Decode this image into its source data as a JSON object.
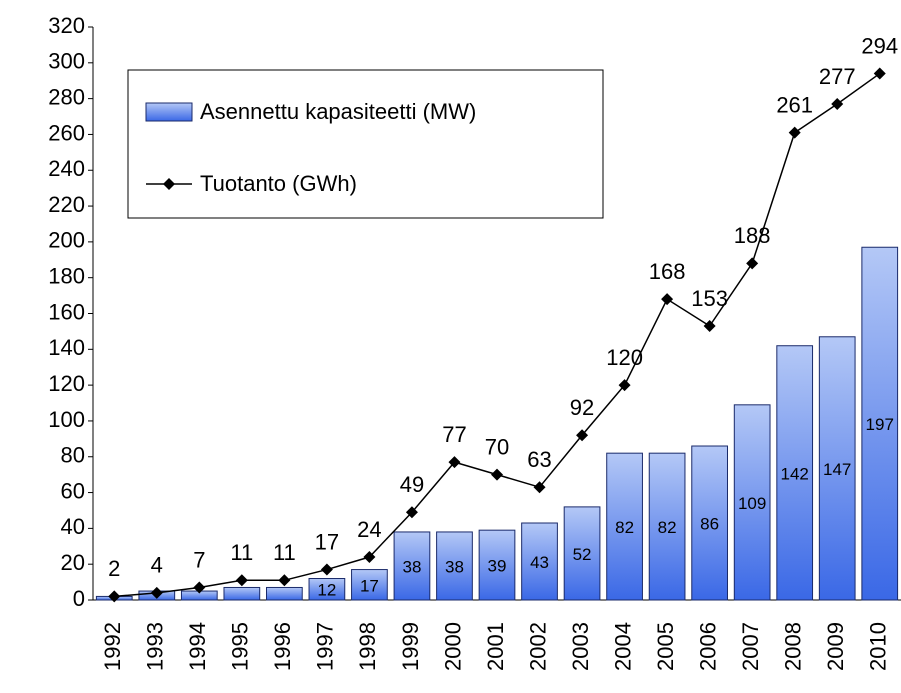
{
  "chart_data": {
    "type": "bar-line",
    "categories": [
      "1992",
      "1993",
      "1994",
      "1995",
      "1996",
      "1997",
      "1998",
      "1999",
      "2000",
      "2001",
      "2002",
      "2003",
      "2004",
      "2005",
      "2006",
      "2007",
      "2008",
      "2009",
      "2010"
    ],
    "series": [
      {
        "name": "Asennettu kapasiteetti (MW)",
        "type": "bar",
        "color": "#4a78ea",
        "values": [
          2,
          5,
          5,
          7,
          7,
          12,
          17,
          38,
          38,
          39,
          43,
          52,
          82,
          82,
          86,
          109,
          142,
          147,
          197
        ],
        "value_labels": [
          null,
          null,
          null,
          null,
          null,
          "12",
          "17",
          "38",
          "38",
          "39",
          "43",
          "52",
          "82",
          "82",
          "86",
          "109",
          "142",
          "147",
          "197"
        ]
      },
      {
        "name": "Tuotanto (GWh)",
        "type": "line",
        "color": "#000000",
        "values": [
          2,
          4,
          7,
          11,
          11,
          17,
          24,
          49,
          77,
          70,
          63,
          92,
          120,
          168,
          153,
          188,
          261,
          277,
          294
        ]
      }
    ],
    "ylim": [
      0,
      320
    ],
    "yticks": [
      0,
      20,
      40,
      60,
      80,
      100,
      120,
      140,
      160,
      180,
      200,
      220,
      240,
      260,
      280,
      300,
      320
    ]
  }
}
